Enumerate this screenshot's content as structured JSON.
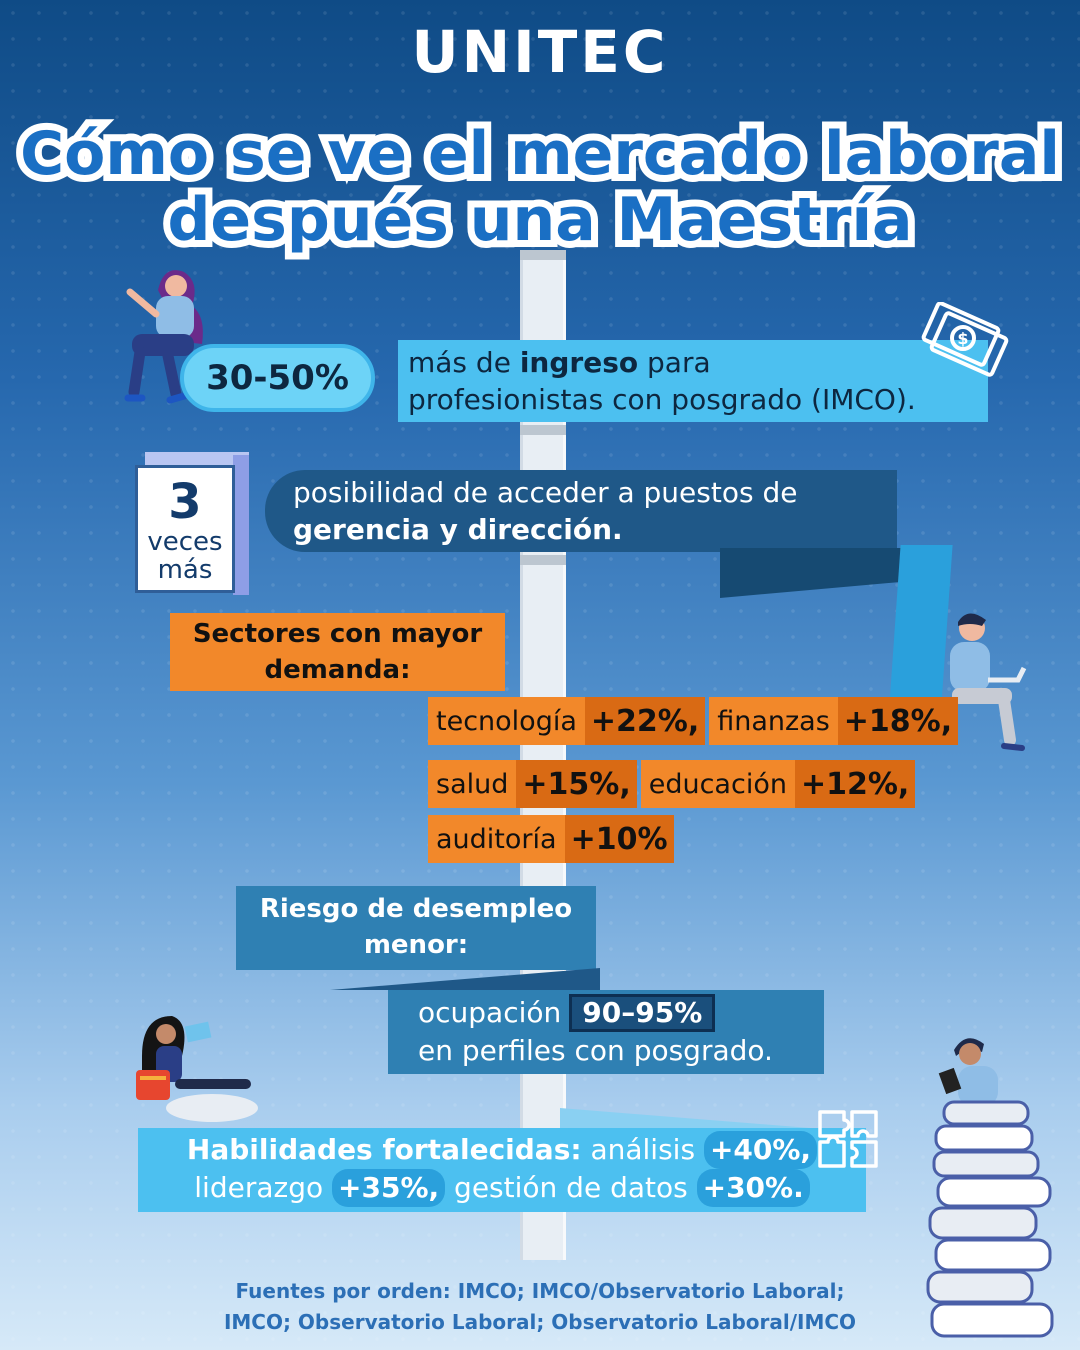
{
  "brand": "UNITEC",
  "title": {
    "line1": "Cómo se ve el mercado laboral",
    "line2": "después una Maestría"
  },
  "income": {
    "percent": "30-50%",
    "text_pre": "más de ",
    "text_bold": "ingreso",
    "text_post": " para",
    "line2": "profesionistas con posgrado (IMCO)."
  },
  "management": {
    "number": "3",
    "word1": "veces",
    "word2": "más",
    "line1": "posibilidad de acceder a puestos de",
    "line2": "gerencia y dirección."
  },
  "sectors": {
    "label_line1": "Sectores con mayor",
    "label_line2": "demanda:",
    "items": [
      {
        "name": "tecnología",
        "pct": "+22%,"
      },
      {
        "name": "finanzas",
        "pct": "+18%,"
      },
      {
        "name": "salud",
        "pct": "+15%,"
      },
      {
        "name": "educación",
        "pct": "+12%,"
      },
      {
        "name": "auditoría",
        "pct": "+10%"
      }
    ]
  },
  "unemployment": {
    "label_line1": "Riesgo de desempleo",
    "label_line2": "menor:",
    "text_pre": "ocupación",
    "pct": "90–95%",
    "line2": "en perfiles con posgrado."
  },
  "skills": {
    "label": "Habilidades fortalecidas:",
    "item1": "análisis",
    "pct1": "+40%,",
    "item2": "liderazgo",
    "pct2": "+35%,",
    "item3": "gestión de datos",
    "pct3": "+30%."
  },
  "sources": {
    "line1": "Fuentes por orden: IMCO; IMCO/Observatorio Laboral;",
    "line2": "IMCO; Observatorio Laboral; Observatorio Laboral/IMCO"
  },
  "colors": {
    "accent_blue": "#4cc0f0",
    "dark_blue": "#1f5888",
    "orange": "#f2882a",
    "title_blue": "#1a6fc4"
  },
  "icons": [
    "money-bills-icon",
    "puzzle-icon",
    "books-stack-icon"
  ]
}
